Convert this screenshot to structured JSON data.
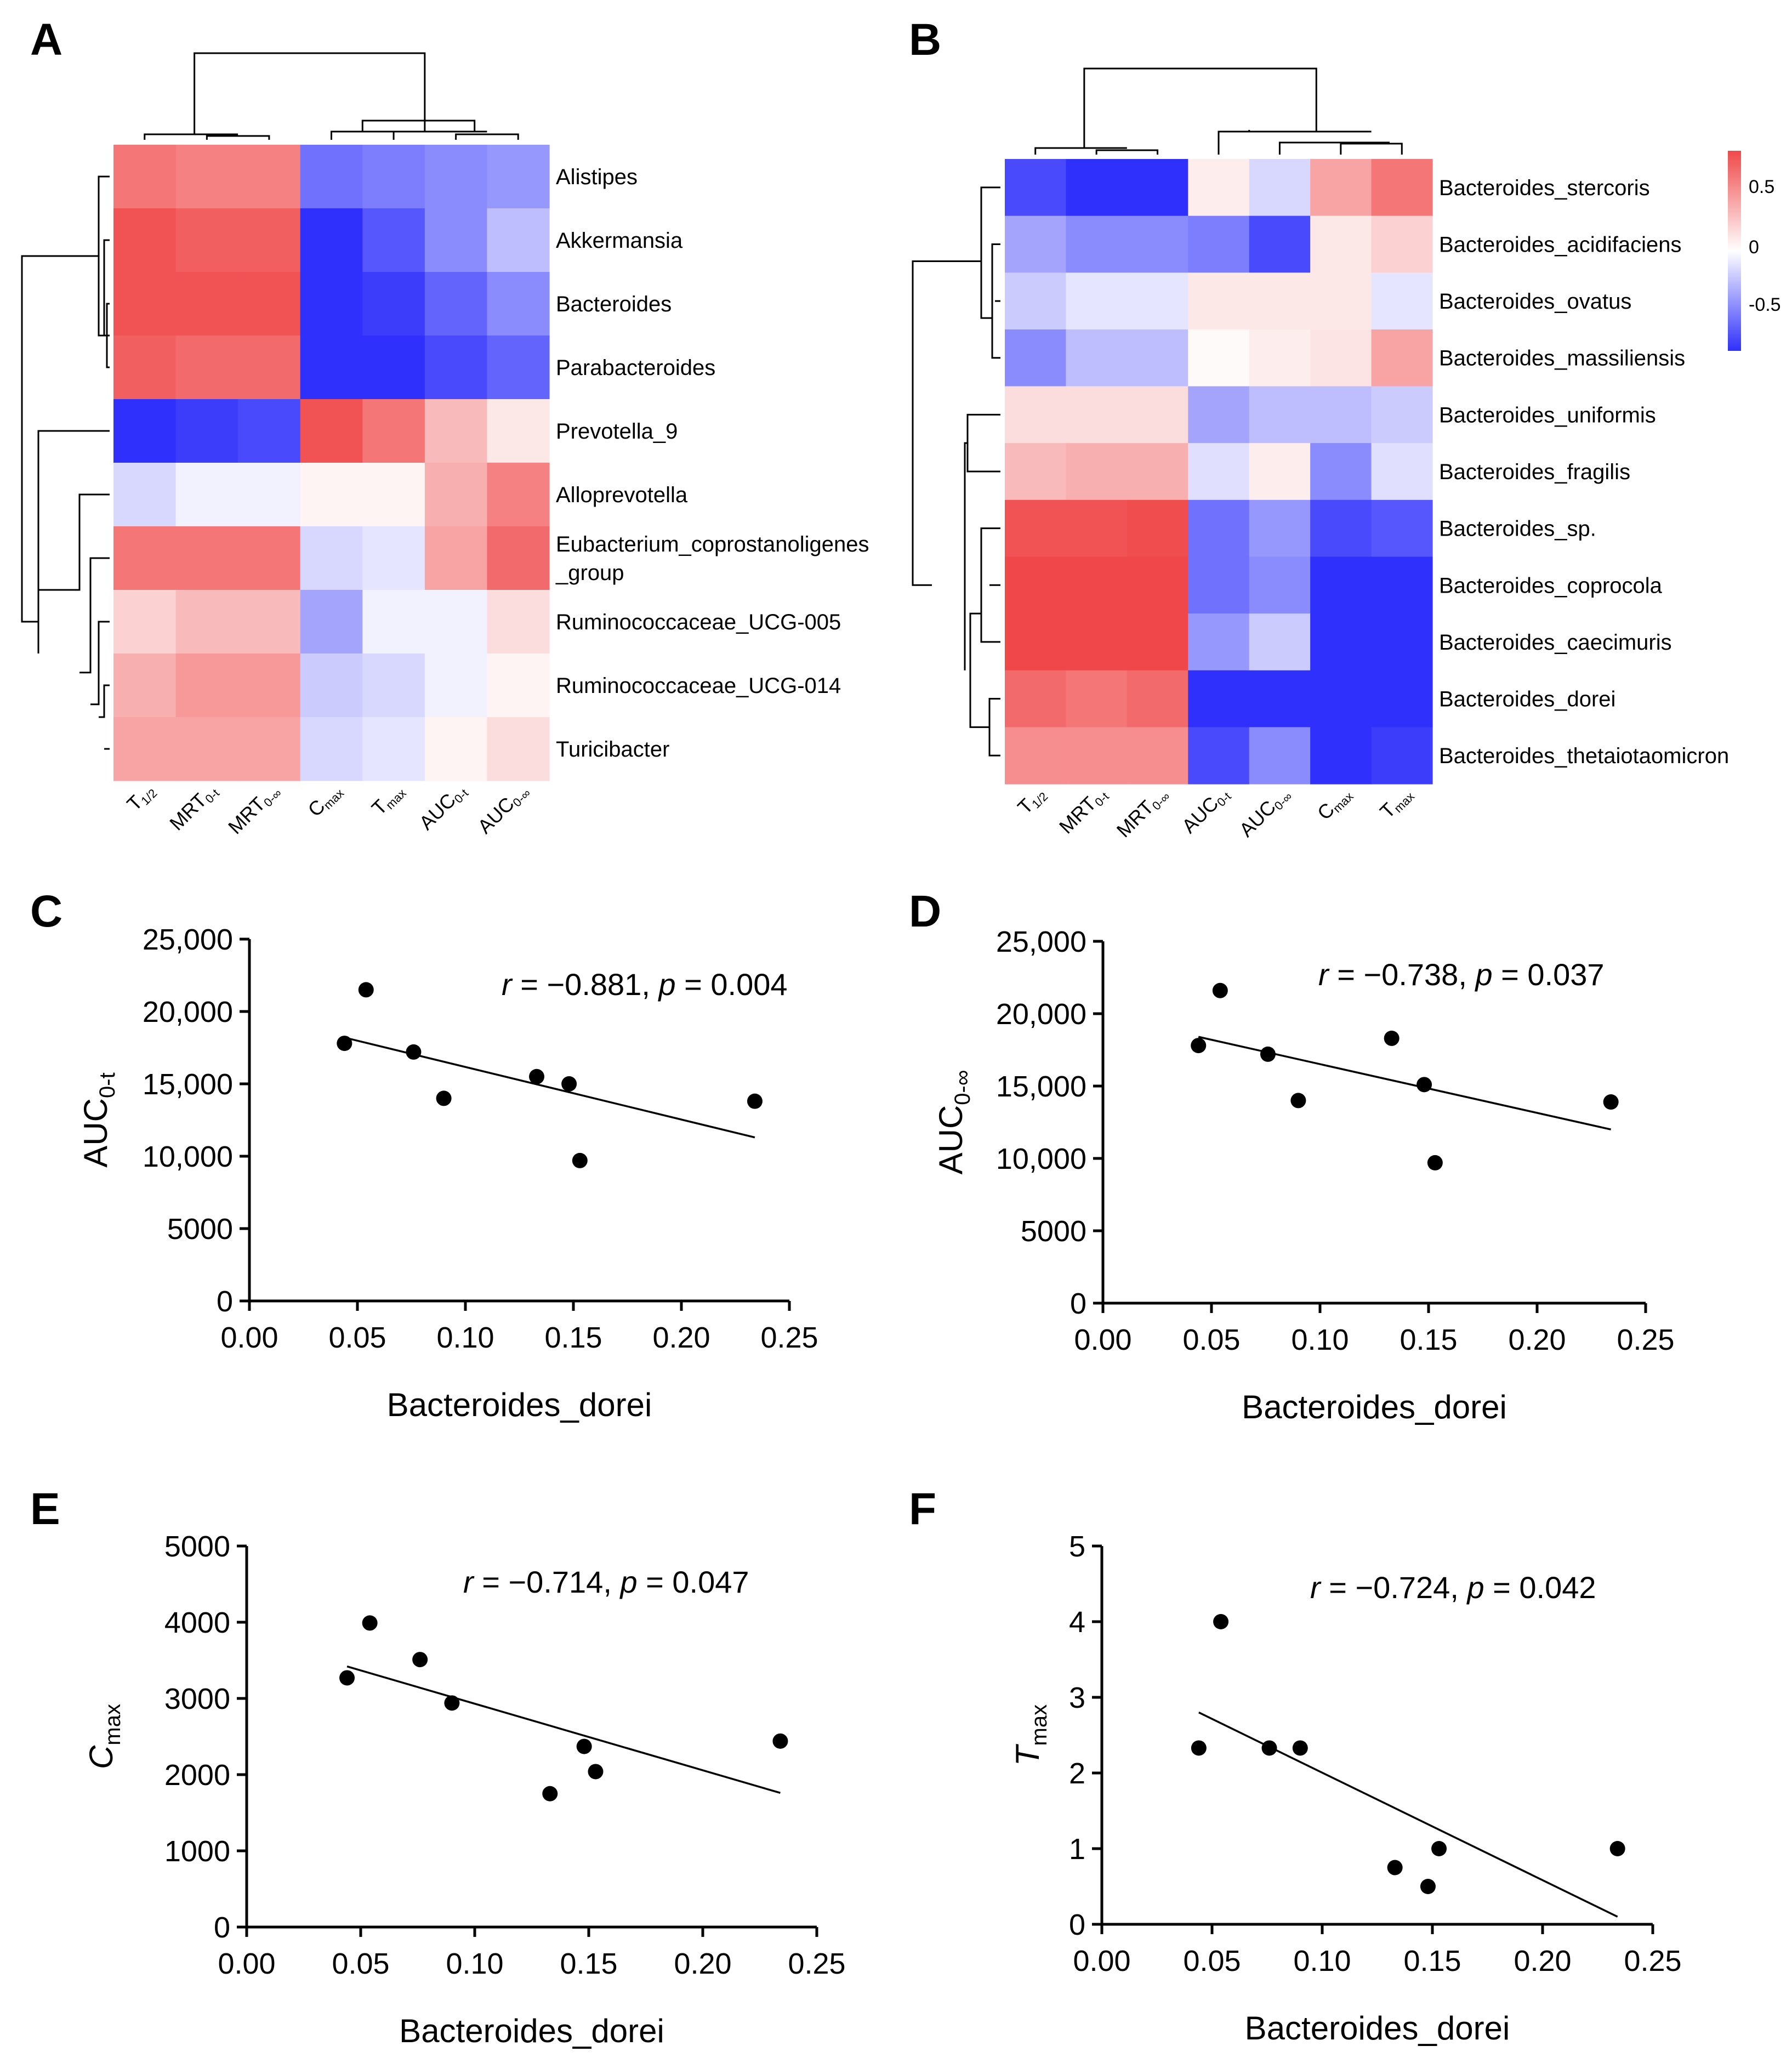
{
  "figure": {
    "panels": [
      "A",
      "B",
      "C",
      "D",
      "E",
      "F"
    ]
  },
  "colors": {
    "high": "#f0484a",
    "mid": "#ffffff",
    "low": "#2f30fb",
    "dendro": "#000000",
    "point": "#000000"
  },
  "chart_data": [
    {
      "panel": "A",
      "type": "heatmap",
      "rows": [
        "Alistipes",
        "Akkermansia",
        "Bacteroides",
        "Parabacteroides",
        "Prevotella_9",
        "Alloprevotella",
        "Eubacterium_coprostanoligenes_group",
        "Ruminococcaceae_UCG-005",
        "Ruminococcaceae_UCG-014",
        "Turicibacter"
      ],
      "row_labels": [
        [
          "Alistipes"
        ],
        [
          "Akkermansia"
        ],
        [
          "Bacteroides"
        ],
        [
          "Parabacteroides"
        ],
        [
          "Prevotella_9"
        ],
        [
          "Alloprevotella"
        ],
        [
          "Eubacterium_coprostanoligenes",
          "_group"
        ],
        [
          "Ruminococcaceae_UCG-005"
        ],
        [
          "Ruminococcaceae_UCG-014"
        ],
        [
          "Turicibacter"
        ]
      ],
      "columns": [
        {
          "base": "T",
          "sub": "1/2"
        },
        {
          "base": "MRT",
          "sub": "0-t"
        },
        {
          "base": "MRT",
          "sub": "0-∞"
        },
        {
          "base": "C",
          "sub": "max"
        },
        {
          "base": "T",
          "sub": "max"
        },
        {
          "base": "AUC",
          "sub": "0-t"
        },
        {
          "base": "AUC",
          "sub": "0-∞"
        }
      ],
      "values": [
        [
          0.6,
          0.55,
          0.55,
          -0.55,
          -0.5,
          -0.45,
          -0.4
        ],
        [
          0.75,
          0.7,
          0.7,
          -0.85,
          -0.65,
          -0.45,
          -0.25
        ],
        [
          0.75,
          0.75,
          0.75,
          -0.85,
          -0.75,
          -0.6,
          -0.45
        ],
        [
          0.7,
          0.65,
          0.65,
          -0.85,
          -0.8,
          -0.7,
          -0.6
        ],
        [
          -0.85,
          -0.75,
          -0.7,
          0.75,
          0.6,
          0.3,
          0.1
        ],
        [
          -0.15,
          -0.05,
          -0.05,
          0.05,
          0.05,
          0.35,
          0.55
        ],
        [
          0.6,
          0.6,
          0.6,
          -0.15,
          -0.1,
          0.4,
          0.65
        ],
        [
          0.2,
          0.3,
          0.3,
          -0.35,
          -0.05,
          -0.05,
          0.15
        ],
        [
          0.35,
          0.45,
          0.45,
          -0.2,
          -0.15,
          -0.05,
          0.05
        ],
        [
          0.4,
          0.4,
          0.4,
          -0.15,
          -0.1,
          0.05,
          0.15
        ]
      ],
      "scale": [
        -0.8,
        0.8
      ]
    },
    {
      "panel": "B",
      "type": "heatmap",
      "rows": [
        "Bacteroides_stercoris",
        "Bacteroides_acidifaciens",
        "Bacteroides_ovatus",
        "Bacteroides_massiliensis",
        "Bacteroides_uniformis",
        "Bacteroides_fragilis",
        "Bacteroides_sp.",
        "Bacteroides_coprocola",
        "Bacteroides_caecimuris",
        "Bacteroides_dorei",
        "Bacteroides_thetaiotaomicron"
      ],
      "columns": [
        {
          "base": "T",
          "sub": "1/2"
        },
        {
          "base": "MRT",
          "sub": "0-t"
        },
        {
          "base": "MRT",
          "sub": "0-∞"
        },
        {
          "base": "AUC",
          "sub": "0-t"
        },
        {
          "base": "AUC",
          "sub": "0-∞"
        },
        {
          "base": "C",
          "sub": "max"
        },
        {
          "base": "T",
          "sub": "max"
        }
      ],
      "values": [
        [
          -0.7,
          -0.8,
          -0.8,
          0.08,
          -0.15,
          0.4,
          0.6
        ],
        [
          -0.35,
          -0.45,
          -0.45,
          -0.5,
          -0.7,
          0.1,
          0.2
        ],
        [
          -0.2,
          -0.1,
          -0.1,
          0.1,
          0.1,
          0.1,
          -0.1
        ],
        [
          -0.45,
          -0.25,
          -0.25,
          0.02,
          0.08,
          0.12,
          0.4
        ],
        [
          0.15,
          0.15,
          0.15,
          -0.35,
          -0.25,
          -0.25,
          -0.2
        ],
        [
          0.3,
          0.35,
          0.35,
          -0.12,
          0.08,
          -0.45,
          -0.12
        ],
        [
          0.75,
          0.75,
          0.78,
          -0.55,
          -0.4,
          -0.7,
          -0.65
        ],
        [
          0.85,
          0.88,
          0.88,
          -0.55,
          -0.45,
          -0.8,
          -0.9
        ],
        [
          0.8,
          0.85,
          0.85,
          -0.4,
          -0.2,
          -0.8,
          -0.8
        ],
        [
          0.65,
          0.6,
          0.65,
          -0.95,
          -0.8,
          -0.8,
          -0.8
        ],
        [
          0.5,
          0.5,
          0.5,
          -0.7,
          -0.45,
          -0.85,
          -0.75
        ]
      ],
      "scale": [
        -0.8,
        0.8
      ],
      "legend_ticks": [
        "0.5",
        "0",
        "-0.5"
      ]
    },
    {
      "panel": "C",
      "type": "scatter",
      "x": [
        0.044,
        0.054,
        0.076,
        0.09,
        0.133,
        0.148,
        0.153,
        0.234
      ],
      "y": [
        17800,
        21500,
        17200,
        14000,
        15500,
        15000,
        9700,
        13800
      ],
      "fit": {
        "x": [
          0.044,
          0.234
        ],
        "y": [
          18200,
          11300
        ]
      },
      "xlabel": "Bacteroides_dorei",
      "ylabel": {
        "base": "AUC",
        "sub": "0-t"
      },
      "xlim": [
        0,
        0.25
      ],
      "ylim": [
        0,
        25000
      ],
      "xticks": [
        "0.00",
        "0.05",
        "0.10",
        "0.15",
        "0.20",
        "0.25"
      ],
      "yticks": [
        "0",
        "5000",
        "10,000",
        "15,000",
        "20,000",
        "25,000"
      ],
      "stat": {
        "r_label": "r",
        "r_value": " = −0.881, ",
        "p_label": "p",
        "p_value": " = 0.004"
      }
    },
    {
      "panel": "D",
      "type": "scatter",
      "x": [
        0.044,
        0.054,
        0.076,
        0.09,
        0.133,
        0.148,
        0.153,
        0.234
      ],
      "y": [
        17800,
        21600,
        17200,
        14000,
        18300,
        15100,
        9700,
        13900
      ],
      "fit": {
        "x": [
          0.044,
          0.234
        ],
        "y": [
          18400,
          12000
        ]
      },
      "xlabel": "Bacteroides_dorei",
      "ylabel": {
        "base": "AUC",
        "sub": "0-∞"
      },
      "xlim": [
        0,
        0.25
      ],
      "ylim": [
        0,
        25000
      ],
      "xticks": [
        "0.00",
        "0.05",
        "0.10",
        "0.15",
        "0.20",
        "0.25"
      ],
      "yticks": [
        "0",
        "5000",
        "10,000",
        "15,000",
        "20,000",
        "25,000"
      ],
      "stat": {
        "r_label": "r",
        "r_value": " = −0.738, ",
        "p_label": "p",
        "p_value": " = 0.037"
      }
    },
    {
      "panel": "E",
      "type": "scatter",
      "x": [
        0.044,
        0.054,
        0.076,
        0.09,
        0.133,
        0.148,
        0.153,
        0.234
      ],
      "y": [
        3270,
        3990,
        3510,
        2940,
        1750,
        2370,
        2040,
        2440
      ],
      "fit": {
        "x": [
          0.044,
          0.234
        ],
        "y": [
          3420,
          1760
        ]
      },
      "xlabel": "Bacteroides_dorei",
      "ylabel": {
        "base": "C",
        "sub": "max"
      },
      "xlim": [
        0,
        0.25
      ],
      "ylim": [
        0,
        5000
      ],
      "xticks": [
        "0.00",
        "0.05",
        "0.10",
        "0.15",
        "0.20",
        "0.25"
      ],
      "yticks": [
        "0",
        "1000",
        "2000",
        "3000",
        "4000",
        "5000"
      ],
      "stat": {
        "r_label": "r",
        "r_value": " = −0.714, ",
        "p_label": "p",
        "p_value": " = 0.047"
      }
    },
    {
      "panel": "F",
      "type": "scatter",
      "x": [
        0.044,
        0.054,
        0.076,
        0.09,
        0.133,
        0.148,
        0.153,
        0.234
      ],
      "y": [
        2.33,
        4.0,
        2.33,
        2.33,
        0.75,
        0.5,
        1.0,
        1.0
      ],
      "fit": {
        "x": [
          0.044,
          0.234
        ],
        "y": [
          2.8,
          0.1
        ]
      },
      "xlabel": "Bacteroides_dorei",
      "ylabel": {
        "base": "T",
        "sub": "max"
      },
      "xlim": [
        0,
        0.25
      ],
      "ylim": [
        0,
        5
      ],
      "xticks": [
        "0.00",
        "0.05",
        "0.10",
        "0.15",
        "0.20",
        "0.25"
      ],
      "yticks": [
        "0",
        "1",
        "2",
        "3",
        "4",
        "5"
      ],
      "stat": {
        "r_label": "r",
        "r_value": " = −0.724, ",
        "p_label": "p",
        "p_value": " = 0.042"
      }
    }
  ]
}
